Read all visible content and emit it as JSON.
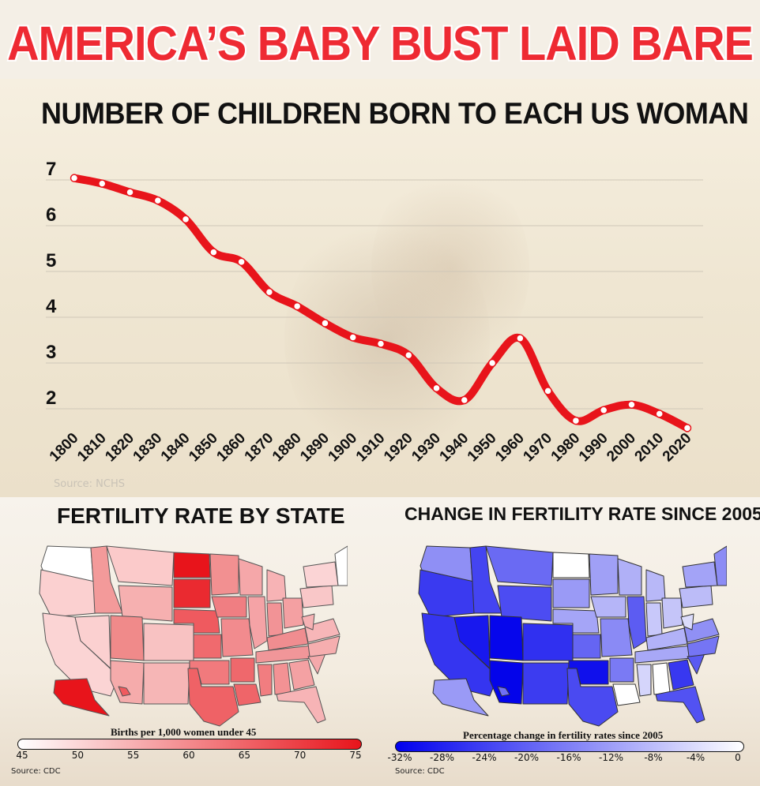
{
  "headline": "AMERICA’S BABY BUST LAID BARE",
  "source_faint": "Source: NCHS",
  "chart_data": [
    {
      "type": "line",
      "title": "NUMBER OF CHILDREN BORN TO EACH US WOMAN",
      "xlabel": "",
      "ylabel": "",
      "x": [
        1800,
        1810,
        1820,
        1830,
        1840,
        1850,
        1860,
        1870,
        1880,
        1890,
        1900,
        1910,
        1920,
        1930,
        1940,
        1950,
        1960,
        1970,
        1980,
        1990,
        2000,
        2010,
        2020
      ],
      "values": [
        7.04,
        6.92,
        6.73,
        6.55,
        6.14,
        5.42,
        5.21,
        4.55,
        4.24,
        3.87,
        3.56,
        3.42,
        3.17,
        2.45,
        2.19,
        3.0,
        3.54,
        2.39,
        1.74,
        1.97,
        2.09,
        1.89,
        1.58
      ],
      "yticks": [
        2,
        3,
        4,
        5,
        6,
        7
      ],
      "ylim": [
        1.25,
        7.5
      ],
      "grid": true,
      "line_color": "#e8141b"
    },
    {
      "type": "map",
      "title": "FERTILITY RATE BY STATE",
      "legend_label": "Births per 1,000 women under 45",
      "legend_ticks": [
        "45",
        "50",
        "55",
        "60",
        "65",
        "70",
        "75"
      ],
      "legend_range": [
        45,
        75
      ],
      "color_low": "#ffffff",
      "color_high": "#e8141b",
      "source": "Source: CDC"
    },
    {
      "type": "map",
      "title": "CHANGE IN FERTILITY RATE SINCE 2005",
      "legend_label": "Percentage change in fertility rates since 2005",
      "legend_ticks": [
        "-32%",
        "-28%",
        "-24%",
        "-20%",
        "-16%",
        "-12%",
        "-8%",
        "-4%",
        "0"
      ],
      "legend_range": [
        -32,
        0
      ],
      "color_low": "#0000ee",
      "color_high": "#ffffff",
      "source": "Source: CDC"
    }
  ]
}
